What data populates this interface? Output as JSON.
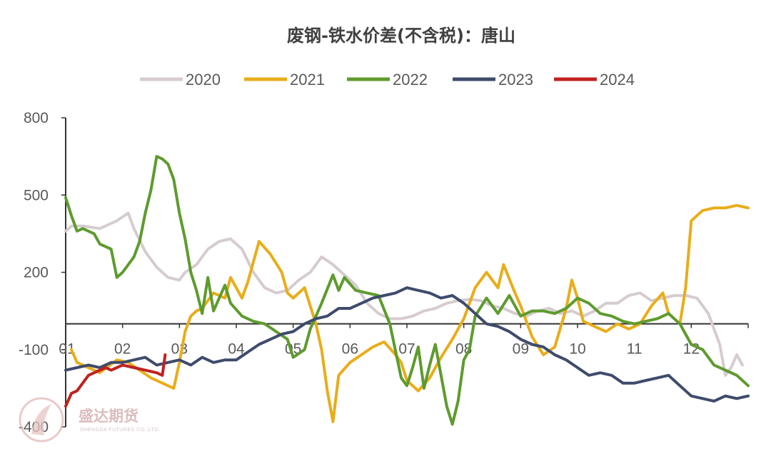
{
  "chart_data": {
    "type": "line",
    "title": "废钢-铁水价差(不含税)：唐山",
    "xlabel": "",
    "ylabel": "",
    "ylim": [
      -400,
      800
    ],
    "yticks": [
      800,
      500,
      200,
      -100,
      -400
    ],
    "xticks": [
      "01",
      "02",
      "03",
      "04",
      "05",
      "06",
      "07",
      "08",
      "09",
      "10",
      "11",
      "12"
    ],
    "x_unit": "month (01-12, fractional position within year)",
    "legend_position": "top",
    "grid": false,
    "series": [
      {
        "name": "2020",
        "color": "#d6ccd0",
        "points": [
          [
            1.0,
            360
          ],
          [
            1.1,
            380
          ],
          [
            1.3,
            380
          ],
          [
            1.6,
            370
          ],
          [
            1.9,
            400
          ],
          [
            2.1,
            430
          ],
          [
            2.2,
            370
          ],
          [
            2.4,
            280
          ],
          [
            2.6,
            220
          ],
          [
            2.8,
            180
          ],
          [
            3.0,
            170
          ],
          [
            3.1,
            200
          ],
          [
            3.3,
            230
          ],
          [
            3.5,
            290
          ],
          [
            3.7,
            320
          ],
          [
            3.9,
            330
          ],
          [
            4.1,
            290
          ],
          [
            4.3,
            200
          ],
          [
            4.5,
            140
          ],
          [
            4.7,
            120
          ],
          [
            4.9,
            130
          ],
          [
            5.1,
            170
          ],
          [
            5.3,
            200
          ],
          [
            5.5,
            260
          ],
          [
            5.7,
            230
          ],
          [
            5.9,
            190
          ],
          [
            6.1,
            150
          ],
          [
            6.3,
            80
          ],
          [
            6.5,
            40
          ],
          [
            6.7,
            20
          ],
          [
            6.9,
            20
          ],
          [
            7.1,
            30
          ],
          [
            7.3,
            50
          ],
          [
            7.5,
            60
          ],
          [
            7.7,
            80
          ],
          [
            7.9,
            90
          ],
          [
            8.1,
            95
          ],
          [
            8.3,
            90
          ],
          [
            8.5,
            70
          ],
          [
            8.7,
            60
          ],
          [
            8.9,
            40
          ],
          [
            9.1,
            30
          ],
          [
            9.3,
            50
          ],
          [
            9.5,
            60
          ],
          [
            9.7,
            40
          ],
          [
            9.9,
            50
          ],
          [
            10.1,
            30
          ],
          [
            10.3,
            50
          ],
          [
            10.5,
            80
          ],
          [
            10.7,
            80
          ],
          [
            10.9,
            110
          ],
          [
            11.1,
            120
          ],
          [
            11.3,
            90
          ],
          [
            11.5,
            100
          ],
          [
            11.7,
            110
          ],
          [
            11.9,
            110
          ],
          [
            12.1,
            100
          ],
          [
            12.3,
            40
          ],
          [
            12.5,
            -80
          ],
          [
            12.6,
            -200
          ],
          [
            12.7,
            -170
          ],
          [
            12.8,
            -120
          ],
          [
            12.9,
            -160
          ]
        ]
      },
      {
        "name": "2021",
        "color": "#e8ad1a",
        "points": [
          [
            1.1,
            -100
          ],
          [
            1.2,
            -150
          ],
          [
            1.4,
            -170
          ],
          [
            1.6,
            -190
          ],
          [
            1.9,
            -140
          ],
          [
            2.1,
            -150
          ],
          [
            2.3,
            -180
          ],
          [
            2.5,
            -210
          ],
          [
            2.7,
            -230
          ],
          [
            2.9,
            -250
          ],
          [
            3.0,
            -150
          ],
          [
            3.1,
            -30
          ],
          [
            3.2,
            30
          ],
          [
            3.3,
            50
          ],
          [
            3.4,
            60
          ],
          [
            3.6,
            120
          ],
          [
            3.8,
            100
          ],
          [
            3.9,
            180
          ],
          [
            4.1,
            100
          ],
          [
            4.2,
            160
          ],
          [
            4.4,
            320
          ],
          [
            4.6,
            270
          ],
          [
            4.8,
            200
          ],
          [
            4.9,
            120
          ],
          [
            5.0,
            100
          ],
          [
            5.2,
            140
          ],
          [
            5.4,
            0
          ],
          [
            5.5,
            -100
          ],
          [
            5.6,
            -260
          ],
          [
            5.7,
            -380
          ],
          [
            5.8,
            -200
          ],
          [
            6.0,
            -150
          ],
          [
            6.2,
            -120
          ],
          [
            6.4,
            -90
          ],
          [
            6.6,
            -70
          ],
          [
            6.8,
            -120
          ],
          [
            6.9,
            -150
          ],
          [
            7.0,
            -220
          ],
          [
            7.2,
            -260
          ],
          [
            7.4,
            -210
          ],
          [
            7.6,
            -130
          ],
          [
            7.8,
            -60
          ],
          [
            8.0,
            20
          ],
          [
            8.2,
            140
          ],
          [
            8.4,
            200
          ],
          [
            8.5,
            170
          ],
          [
            8.6,
            140
          ],
          [
            8.7,
            230
          ],
          [
            8.9,
            120
          ],
          [
            9.0,
            70
          ],
          [
            9.2,
            -50
          ],
          [
            9.4,
            -120
          ],
          [
            9.6,
            -90
          ],
          [
            9.8,
            60
          ],
          [
            9.9,
            170
          ],
          [
            10.0,
            100
          ],
          [
            10.1,
            10
          ],
          [
            10.3,
            -10
          ],
          [
            10.5,
            -30
          ],
          [
            10.7,
            0
          ],
          [
            10.9,
            -20
          ],
          [
            11.1,
            0
          ],
          [
            11.3,
            70
          ],
          [
            11.5,
            120
          ],
          [
            11.6,
            40
          ],
          [
            11.8,
            0
          ],
          [
            11.9,
            140
          ],
          [
            12.0,
            400
          ],
          [
            12.2,
            440
          ],
          [
            12.4,
            450
          ],
          [
            12.6,
            450
          ],
          [
            12.8,
            460
          ],
          [
            13.0,
            450
          ]
        ]
      },
      {
        "name": "2022",
        "color": "#5e9b2e",
        "points": [
          [
            1.0,
            490
          ],
          [
            1.1,
            420
          ],
          [
            1.2,
            360
          ],
          [
            1.3,
            370
          ],
          [
            1.5,
            350
          ],
          [
            1.6,
            310
          ],
          [
            1.8,
            290
          ],
          [
            1.9,
            180
          ],
          [
            2.0,
            200
          ],
          [
            2.2,
            260
          ],
          [
            2.3,
            320
          ],
          [
            2.4,
            430
          ],
          [
            2.5,
            520
          ],
          [
            2.6,
            650
          ],
          [
            2.7,
            640
          ],
          [
            2.8,
            620
          ],
          [
            2.9,
            560
          ],
          [
            3.0,
            430
          ],
          [
            3.1,
            330
          ],
          [
            3.2,
            200
          ],
          [
            3.3,
            130
          ],
          [
            3.4,
            40
          ],
          [
            3.5,
            180
          ],
          [
            3.6,
            50
          ],
          [
            3.8,
            150
          ],
          [
            3.9,
            80
          ],
          [
            4.1,
            30
          ],
          [
            4.3,
            10
          ],
          [
            4.5,
            0
          ],
          [
            4.7,
            -30
          ],
          [
            4.9,
            -60
          ],
          [
            5.0,
            -130
          ],
          [
            5.2,
            -100
          ],
          [
            5.3,
            -20
          ],
          [
            5.5,
            80
          ],
          [
            5.7,
            190
          ],
          [
            5.8,
            130
          ],
          [
            5.9,
            180
          ],
          [
            6.1,
            130
          ],
          [
            6.3,
            120
          ],
          [
            6.5,
            110
          ],
          [
            6.7,
            0
          ],
          [
            6.9,
            -210
          ],
          [
            7.0,
            -240
          ],
          [
            7.1,
            -170
          ],
          [
            7.2,
            -90
          ],
          [
            7.3,
            -250
          ],
          [
            7.4,
            -160
          ],
          [
            7.5,
            -80
          ],
          [
            7.6,
            -200
          ],
          [
            7.7,
            -320
          ],
          [
            7.8,
            -390
          ],
          [
            7.9,
            -300
          ],
          [
            8.0,
            -140
          ],
          [
            8.1,
            -100
          ],
          [
            8.2,
            30
          ],
          [
            8.4,
            100
          ],
          [
            8.6,
            40
          ],
          [
            8.8,
            110
          ],
          [
            9.0,
            30
          ],
          [
            9.2,
            50
          ],
          [
            9.4,
            50
          ],
          [
            9.6,
            40
          ],
          [
            9.8,
            60
          ],
          [
            10.0,
            100
          ],
          [
            10.2,
            80
          ],
          [
            10.4,
            40
          ],
          [
            10.6,
            30
          ],
          [
            10.8,
            10
          ],
          [
            11.0,
            0
          ],
          [
            11.2,
            10
          ],
          [
            11.4,
            20
          ],
          [
            11.6,
            40
          ],
          [
            11.8,
            0
          ],
          [
            12.0,
            -80
          ],
          [
            12.2,
            -100
          ],
          [
            12.4,
            -160
          ],
          [
            12.6,
            -180
          ],
          [
            12.8,
            -200
          ],
          [
            13.0,
            -240
          ]
        ]
      },
      {
        "name": "2023",
        "color": "#3e4b6b",
        "points": [
          [
            1.0,
            -180
          ],
          [
            1.2,
            -170
          ],
          [
            1.4,
            -160
          ],
          [
            1.6,
            -170
          ],
          [
            1.8,
            -150
          ],
          [
            2.0,
            -150
          ],
          [
            2.2,
            -140
          ],
          [
            2.4,
            -130
          ],
          [
            2.6,
            -160
          ],
          [
            2.8,
            -150
          ],
          [
            3.0,
            -140
          ],
          [
            3.2,
            -160
          ],
          [
            3.4,
            -130
          ],
          [
            3.6,
            -150
          ],
          [
            3.8,
            -140
          ],
          [
            4.0,
            -140
          ],
          [
            4.2,
            -110
          ],
          [
            4.4,
            -80
          ],
          [
            4.6,
            -60
          ],
          [
            4.8,
            -40
          ],
          [
            5.0,
            -30
          ],
          [
            5.2,
            0
          ],
          [
            5.4,
            20
          ],
          [
            5.6,
            30
          ],
          [
            5.8,
            60
          ],
          [
            6.0,
            60
          ],
          [
            6.2,
            80
          ],
          [
            6.4,
            100
          ],
          [
            6.6,
            110
          ],
          [
            6.8,
            120
          ],
          [
            7.0,
            140
          ],
          [
            7.2,
            130
          ],
          [
            7.4,
            120
          ],
          [
            7.6,
            100
          ],
          [
            7.8,
            110
          ],
          [
            8.0,
            80
          ],
          [
            8.2,
            40
          ],
          [
            8.4,
            0
          ],
          [
            8.6,
            -10
          ],
          [
            8.8,
            -30
          ],
          [
            9.0,
            -60
          ],
          [
            9.2,
            -80
          ],
          [
            9.4,
            -90
          ],
          [
            9.6,
            -120
          ],
          [
            9.8,
            -140
          ],
          [
            10.0,
            -170
          ],
          [
            10.2,
            -200
          ],
          [
            10.4,
            -190
          ],
          [
            10.6,
            -200
          ],
          [
            10.8,
            -230
          ],
          [
            11.0,
            -230
          ],
          [
            11.2,
            -220
          ],
          [
            11.4,
            -210
          ],
          [
            11.6,
            -200
          ],
          [
            11.8,
            -240
          ],
          [
            12.0,
            -280
          ],
          [
            12.2,
            -290
          ],
          [
            12.4,
            -300
          ],
          [
            12.6,
            -280
          ],
          [
            12.8,
            -290
          ],
          [
            13.0,
            -280
          ]
        ]
      },
      {
        "name": "2024",
        "color": "#c0211f",
        "points": [
          [
            1.0,
            -320
          ],
          [
            1.1,
            -270
          ],
          [
            1.2,
            -260
          ],
          [
            1.3,
            -230
          ],
          [
            1.4,
            -200
          ],
          [
            1.5,
            -190
          ],
          [
            1.6,
            -180
          ],
          [
            1.7,
            -170
          ],
          [
            1.8,
            -180
          ],
          [
            1.9,
            -170
          ],
          [
            2.0,
            -160
          ],
          [
            2.2,
            -170
          ],
          [
            2.4,
            -180
          ],
          [
            2.6,
            -190
          ],
          [
            2.7,
            -200
          ],
          [
            2.75,
            -120
          ]
        ]
      }
    ]
  },
  "watermark": {
    "text": "盛达期货",
    "subtext": "SHENGDA FUTURES CO.,LTD."
  }
}
